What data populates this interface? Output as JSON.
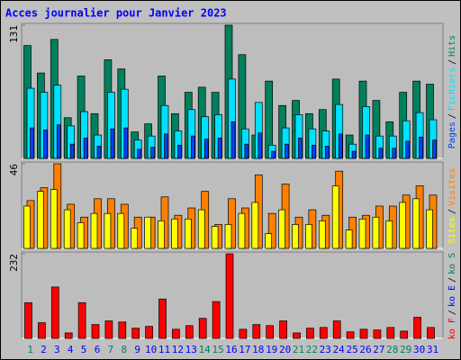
{
  "title": "Acces journalier pour Janvier 2023",
  "legend_separator": "/",
  "chart_data": [
    {
      "type": "bar",
      "ylim": [
        0,
        131
      ],
      "yticks": [
        131
      ],
      "series": [
        {
          "name": "Hits",
          "color": "#00805c",
          "values": [
            111,
            84,
            117,
            40,
            81,
            44,
            97,
            88,
            26,
            34,
            81,
            44,
            65,
            70,
            65,
            131,
            102,
            23,
            76,
            52,
            57,
            44,
            48,
            78,
            23,
            76,
            57,
            36,
            65,
            76,
            73
          ]
        },
        {
          "name": "Fichiers",
          "color": "#00e0ff",
          "values": [
            69,
            65,
            72,
            32,
            46,
            23,
            65,
            68,
            18,
            22,
            52,
            27,
            48,
            41,
            43,
            78,
            29,
            55,
            13,
            30,
            43,
            29,
            27,
            53,
            14,
            51,
            22,
            22,
            37,
            45,
            38
          ]
        },
        {
          "name": "Pages",
          "color": "#0040ff",
          "values": [
            30,
            28,
            33,
            14,
            20,
            12,
            29,
            30,
            9,
            11,
            24,
            13,
            22,
            19,
            20,
            36,
            14,
            25,
            7,
            14,
            20,
            13,
            12,
            24,
            7,
            23,
            10,
            10,
            17,
            21,
            18
          ]
        }
      ]
    },
    {
      "type": "bar",
      "ylim": [
        0,
        46
      ],
      "yticks": [
        46
      ],
      "series": [
        {
          "name": "Visites",
          "color": "#ff8000",
          "values": [
            26,
            33,
            46,
            24,
            17,
            27,
            27,
            24,
            17,
            17,
            28,
            18,
            22,
            31,
            13,
            27,
            22,
            40,
            19,
            35,
            17,
            21,
            18,
            42,
            17,
            18,
            23,
            23,
            29,
            34,
            29
          ]
        },
        {
          "name": "Sites",
          "color": "#ffff00",
          "values": [
            23,
            31,
            32,
            21,
            14,
            19,
            19,
            19,
            11,
            17,
            15,
            16,
            16,
            21,
            12,
            13,
            19,
            25,
            8,
            21,
            13,
            13,
            15,
            34,
            10,
            16,
            17,
            15,
            25,
            27,
            21
          ]
        }
      ]
    },
    {
      "type": "bar",
      "ylim": [
        0,
        232
      ],
      "yticks": [
        232
      ],
      "categories": [
        "1",
        "2",
        "3",
        "4",
        "5",
        "6",
        "7",
        "8",
        "9",
        "10",
        "11",
        "12",
        "13",
        "14",
        "15",
        "16",
        "17",
        "18",
        "19",
        "20",
        "21",
        "22",
        "23",
        "24",
        "25",
        "26",
        "27",
        "28",
        "29",
        "30",
        "31"
      ],
      "weekend": [
        true,
        false,
        false,
        false,
        false,
        false,
        true,
        true,
        false,
        false,
        false,
        false,
        false,
        true,
        true,
        false,
        false,
        false,
        false,
        false,
        true,
        true,
        false,
        false,
        false,
        false,
        false,
        true,
        true,
        false,
        false
      ],
      "weekday_color": "#0000ff",
      "weekend_color": "#00805c",
      "series": [
        {
          "name": "ko F",
          "color": "#ff0000",
          "values": [
            98,
            43,
            141,
            15,
            98,
            38,
            48,
            45,
            28,
            33,
            108,
            25,
            35,
            55,
            101,
            232,
            25,
            38,
            35,
            48,
            15,
            28,
            30,
            48,
            18,
            25,
            23,
            30,
            20,
            58,
            30
          ]
        }
      ],
      "other_legend": [
        {
          "name": "ko E",
          "color": "#0000ff"
        },
        {
          "name": "ko S",
          "color": "#00805c"
        }
      ]
    }
  ]
}
